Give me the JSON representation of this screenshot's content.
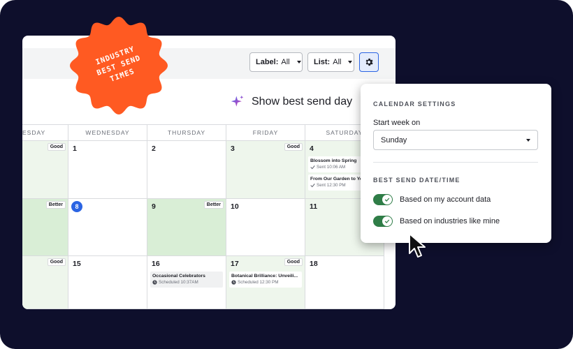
{
  "badge": {
    "lines": [
      "INDUSTRY",
      "BEST SEND",
      "TIMES"
    ],
    "color": "#ff5a22"
  },
  "toolbar": {
    "label_filter": {
      "key": "Label:",
      "value": "All"
    },
    "list_filter": {
      "key": "List:",
      "value": "All"
    }
  },
  "best_send_toggle": {
    "label": "Show best send day"
  },
  "calendar": {
    "day_headers": [
      "ESDAY",
      "WEDNESDAY",
      "THURSDAY",
      "FRIDAY",
      "SATURDAY"
    ],
    "weeks": [
      [
        {
          "num": "",
          "tag": "Good"
        },
        {
          "num": "1"
        },
        {
          "num": "2"
        },
        {
          "num": "3",
          "tag": "Good"
        },
        {
          "num": "4"
        }
      ],
      [
        {
          "num": "",
          "tag": "Better"
        },
        {
          "num": "8"
        },
        {
          "num": "9",
          "tag": "Better"
        },
        {
          "num": "10"
        },
        {
          "num": "11"
        }
      ],
      [
        {
          "num": "",
          "tag": "Good"
        },
        {
          "num": "15"
        },
        {
          "num": "16"
        },
        {
          "num": "17",
          "tag": "Good"
        },
        {
          "num": "18"
        }
      ]
    ],
    "events": {
      "sat4_1": {
        "title": "Blossom into Spring",
        "status": "Sent 10:06 AM"
      },
      "sat4_2": {
        "title": "From Our Garden to Yo",
        "status": "Sent 12:30 PM"
      },
      "thu16": {
        "title": "Occasional Celebrators",
        "status": "Scheduled 10:37AM"
      },
      "fri17": {
        "title": "Botanical Brilliance: Unveili...",
        "status": "Scheduled 12:30 PM"
      }
    }
  },
  "settings": {
    "section1": "CALENDAR SETTINGS",
    "start_week_label": "Start week on",
    "start_week_value": "Sunday",
    "section2": "BEST SEND DATE/TIME",
    "toggle1": "Based on my account data",
    "toggle2": "Based on industries like mine"
  },
  "icons": [
    "gear-icon",
    "sparkle-icon",
    "check-icon",
    "clock-icon",
    "chevron-down-icon",
    "cursor-icon"
  ]
}
